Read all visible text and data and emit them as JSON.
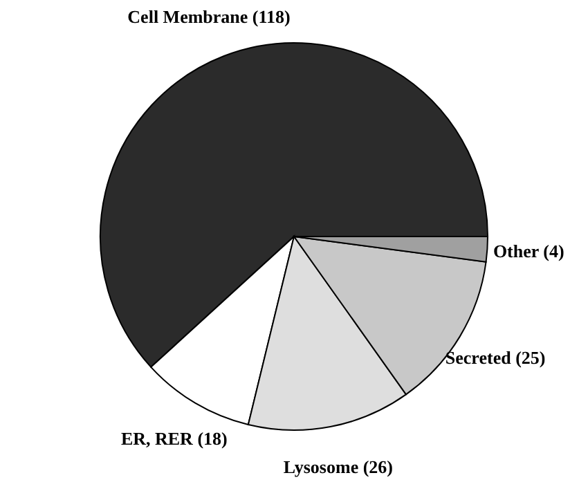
{
  "chart_data": {
    "type": "pie",
    "categories": [
      "Cell Membrane",
      "ER, RER",
      "Lysosome",
      "Secreted",
      "Other"
    ],
    "values": [
      118,
      18,
      26,
      25,
      4
    ],
    "value_labels": [
      "(118)",
      "(18)",
      "(26)",
      "(25)",
      "(4)"
    ],
    "colors": [
      "#2b2b2b",
      "#ffffff",
      "#dedede",
      "#c8c8c8",
      "#a0a0a0"
    ]
  }
}
